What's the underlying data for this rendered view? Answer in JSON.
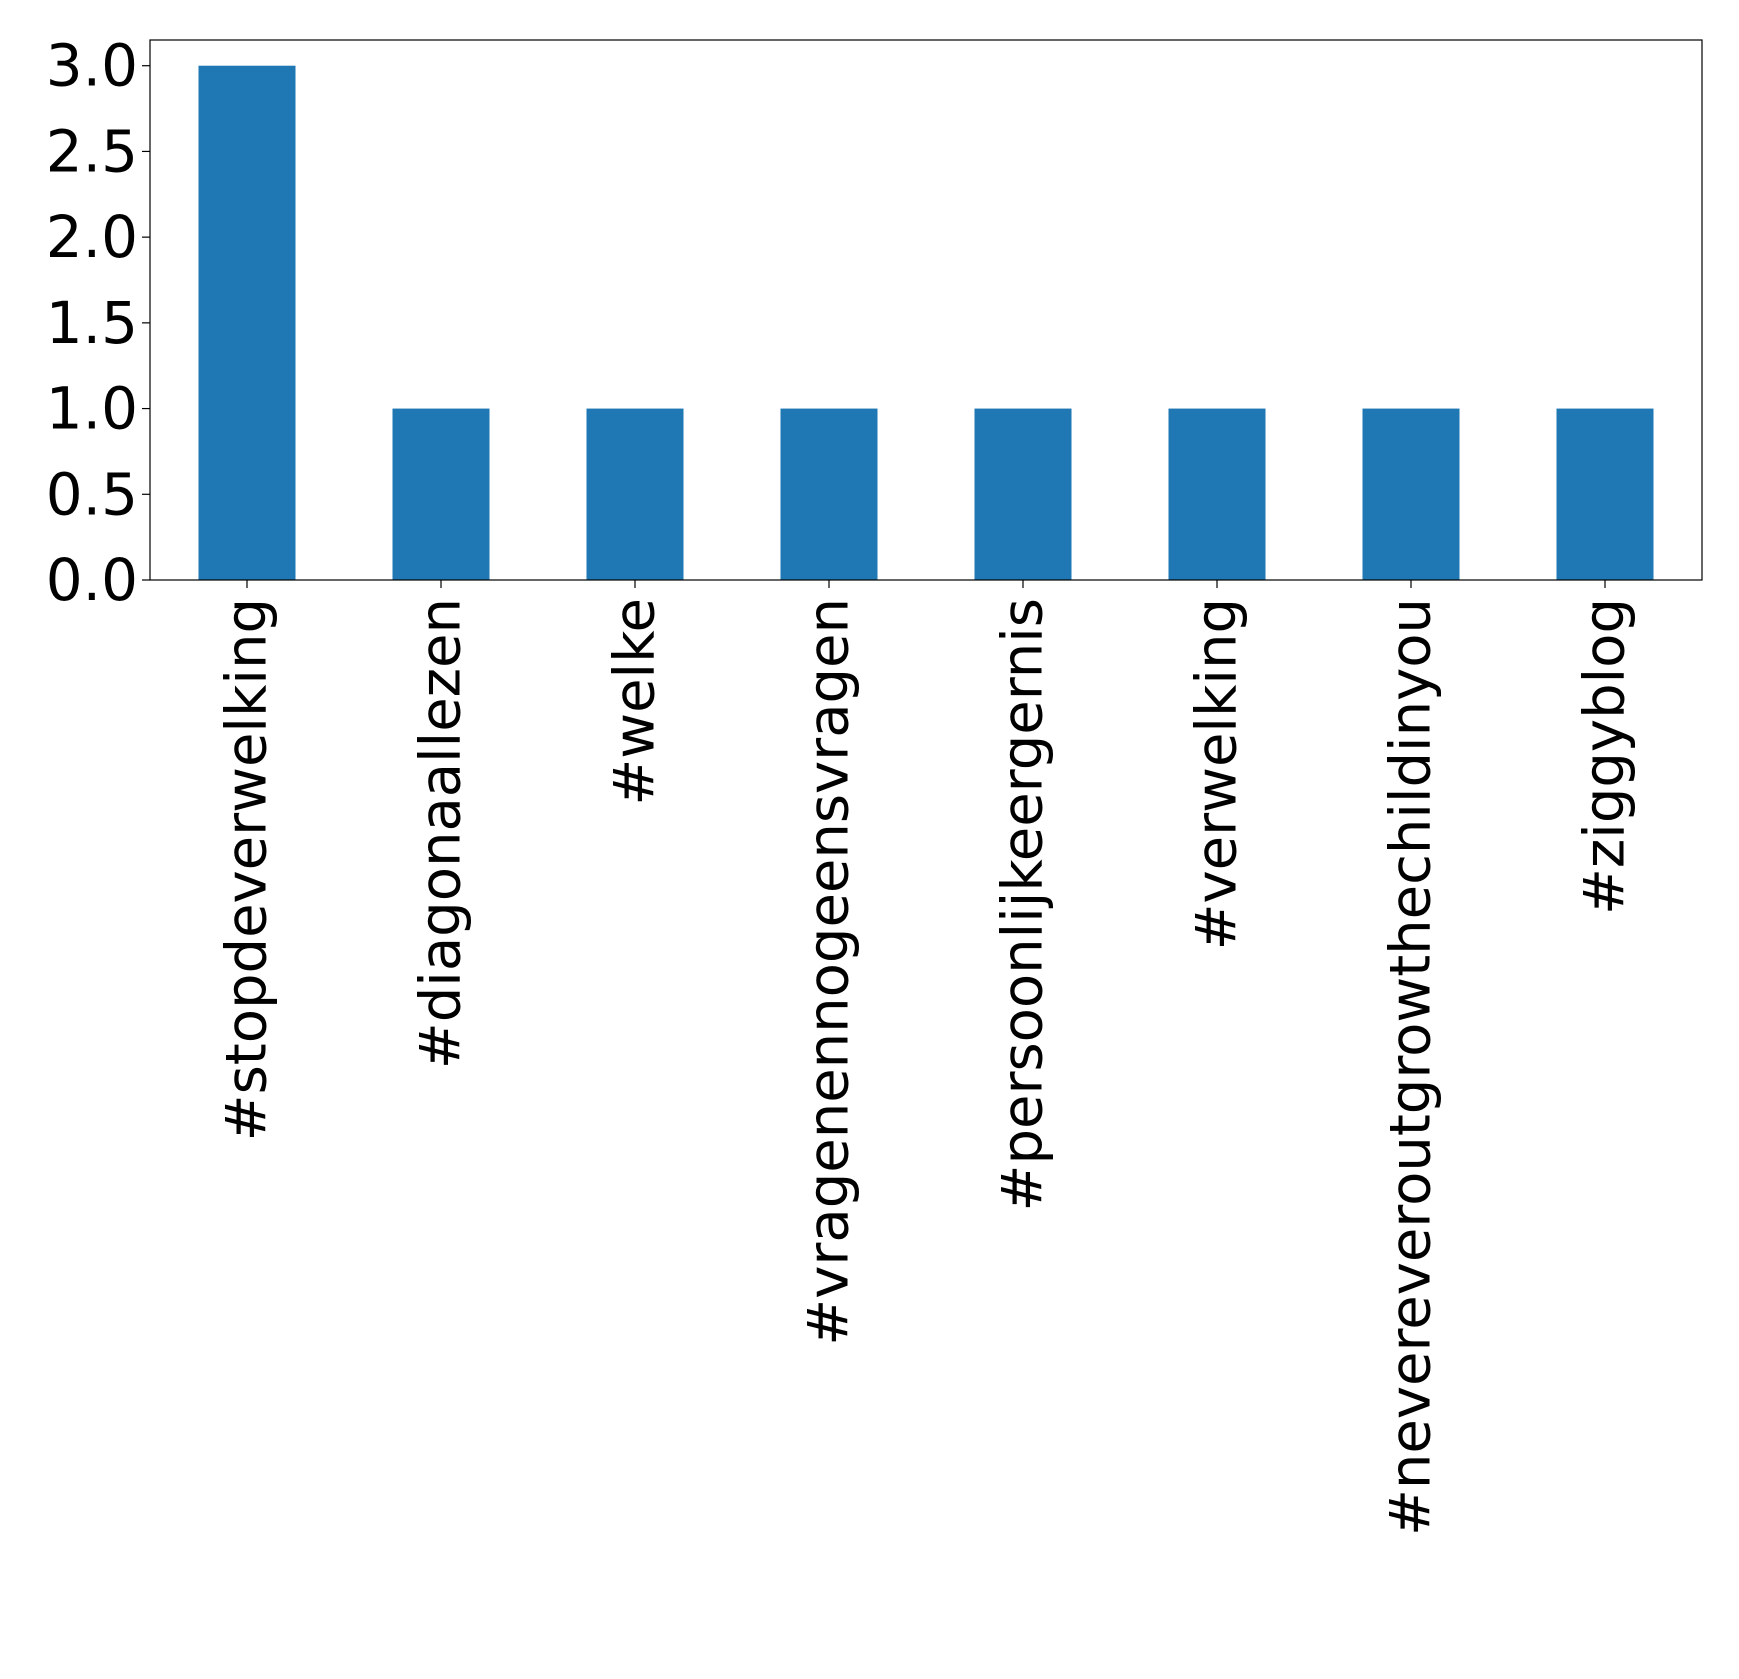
{
  "chart_data": {
    "type": "bar",
    "title": "",
    "xlabel": "",
    "ylabel": "",
    "categories": [
      "#stopdeverwelking",
      "#diagonaallezen",
      "#welke",
      "#vragenennogeensvragen",
      "#persoonlijkeergernis",
      "#verwelking",
      "#nevereveroutgrowthechildinyou",
      "#ziggyblog"
    ],
    "values": [
      3,
      1,
      1,
      1,
      1,
      1,
      1,
      1
    ],
    "ylim": [
      0,
      3.15
    ],
    "yticks": [
      "0.0",
      "0.5",
      "1.0",
      "1.5",
      "2.0",
      "2.5",
      "3.0"
    ],
    "bar_color": "#1f77b4",
    "grid": false,
    "legend": "none"
  }
}
